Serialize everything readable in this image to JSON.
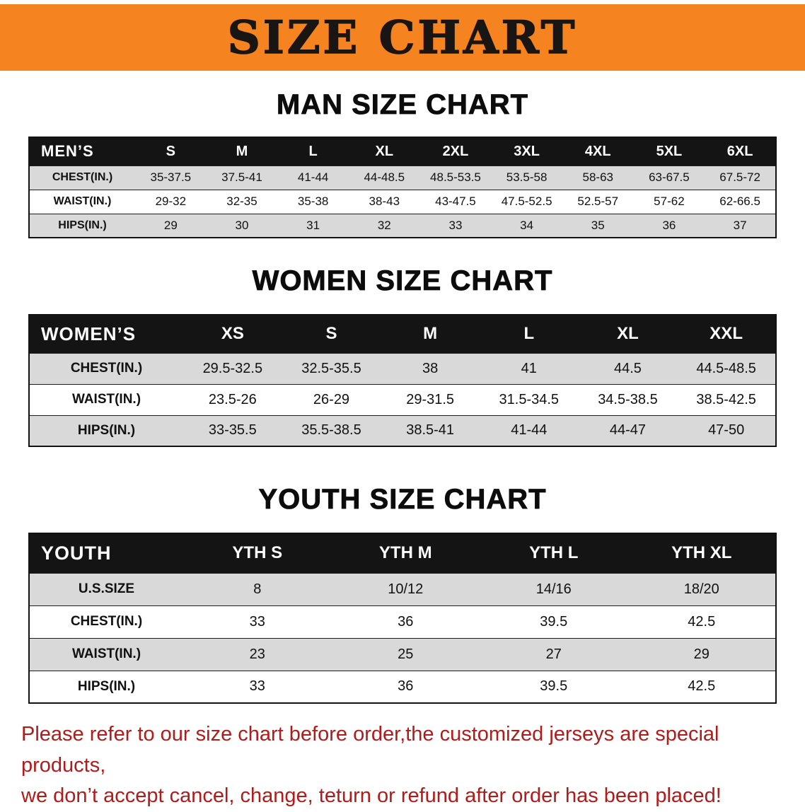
{
  "banner": {
    "title": "SIZE CHART"
  },
  "sections": [
    {
      "heading": "MAN SIZE CHART",
      "table": {
        "corner": "MEN’S",
        "columns": [
          "S",
          "M",
          "L",
          "XL",
          "2XL",
          "3XL",
          "4XL",
          "5XL",
          "6XL"
        ],
        "rows": [
          {
            "label": "CHEST(IN.)",
            "values": [
              "35-37.5",
              "37.5-41",
              "41-44",
              "44-48.5",
              "48.5-53.5",
              "53.5-58",
              "58-63",
              "63-67.5",
              "67.5-72"
            ]
          },
          {
            "label": "WAIST(IN.)",
            "values": [
              "29-32",
              "32-35",
              "35-38",
              "38-43",
              "43-47.5",
              "47.5-52.5",
              "52.5-57",
              "57-62",
              "62-66.5"
            ]
          },
          {
            "label": "HIPS(IN.)",
            "values": [
              "29",
              "30",
              "31",
              "32",
              "33",
              "34",
              "35",
              "36",
              "37"
            ]
          }
        ]
      }
    },
    {
      "heading": "WOMEN SIZE CHART",
      "table": {
        "corner": "WOMEN’S",
        "columns": [
          "XS",
          "S",
          "M",
          "L",
          "XL",
          "XXL"
        ],
        "rows": [
          {
            "label": "CHEST(IN.)",
            "values": [
              "29.5-32.5",
              "32.5-35.5",
              "38",
              "41",
              "44.5",
              "44.5-48.5"
            ]
          },
          {
            "label": "WAIST(IN.)",
            "values": [
              "23.5-26",
              "26-29",
              "29-31.5",
              "31.5-34.5",
              "34.5-38.5",
              "38.5-42.5"
            ]
          },
          {
            "label": "HIPS(IN.)",
            "values": [
              "33-35.5",
              "35.5-38.5",
              "38.5-41",
              "41-44",
              "44-47",
              "47-50"
            ]
          }
        ]
      }
    },
    {
      "heading": "YOUTH SIZE CHART",
      "table": {
        "corner": "YOUTH",
        "columns": [
          "YTH S",
          "YTH M",
          "YTH L",
          "YTH XL"
        ],
        "rows": [
          {
            "label": "U.S.SIZE",
            "values": [
              "8",
              "10/12",
              "14/16",
              "18/20"
            ]
          },
          {
            "label": "CHEST(IN.)",
            "values": [
              "33",
              "36",
              "39.5",
              "42.5"
            ]
          },
          {
            "label": "WAIST(IN.)",
            "values": [
              "23",
              "25",
              "27",
              "29"
            ]
          },
          {
            "label": "HIPS(IN.)",
            "values": [
              "33",
              "36",
              "39.5",
              "42.5"
            ]
          }
        ]
      }
    }
  ],
  "disclaimer": {
    "line1": "Please refer to our size chart before order,the customized jerseys are special products,",
    "line2": "we don’t accept cancel, change, teturn or refund after order has been placed!",
    "color": "#b01b1b"
  },
  "colors": {
    "banner_bg": "#f5831f",
    "table_header_bg": "#141414",
    "shaded_row_bg": "#d9d9d9",
    "text": "#111111"
  }
}
